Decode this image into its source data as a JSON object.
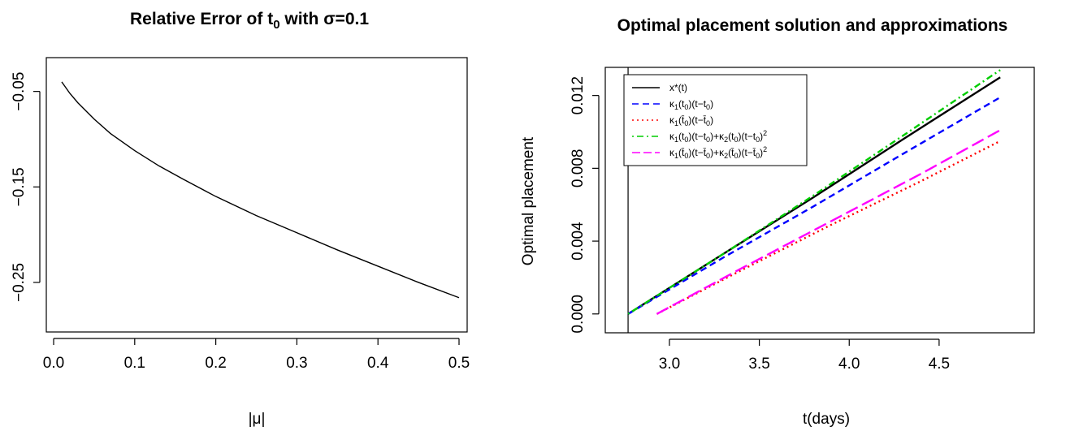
{
  "chart_data": [
    {
      "type": "line",
      "title": "Relative Error of t₀ with σ=0.1",
      "title_parts": [
        "Relative Error of t",
        "0",
        " with σ=0.1"
      ],
      "xlabel": "|μ|",
      "ylabel": "",
      "xlim": [
        0.0,
        0.5
      ],
      "ylim": [
        -0.29,
        -0.035
      ],
      "xticks": [
        0.0,
        0.1,
        0.2,
        0.3,
        0.4,
        0.5
      ],
      "xtick_labels": [
        "0.0",
        "0.1",
        "0.2",
        "0.3",
        "0.4",
        "0.5"
      ],
      "yticks": [
        -0.05,
        -0.15,
        -0.25
      ],
      "ytick_labels": [
        "−0.05",
        "−0.15",
        "−0.25"
      ],
      "grid": false,
      "series": [
        {
          "color": "#000000",
          "x": [
            0.01,
            0.02,
            0.03,
            0.05,
            0.07,
            0.1,
            0.13,
            0.16,
            0.2,
            0.25,
            0.3,
            0.35,
            0.4,
            0.45,
            0.5
          ],
          "y": [
            -0.04,
            -0.052,
            -0.062,
            -0.079,
            -0.094,
            -0.112,
            -0.128,
            -0.142,
            -0.16,
            -0.18,
            -0.198,
            -0.216,
            -0.233,
            -0.25,
            -0.266
          ]
        }
      ]
    },
    {
      "type": "line",
      "title": "Optimal placement solution and approximations",
      "xlabel": "t(days)",
      "ylabel": "Optimal placement",
      "xlim": [
        2.72,
        4.88
      ],
      "ylim": [
        -0.0005,
        0.0135
      ],
      "xticks": [
        3.0,
        3.5,
        4.0,
        4.5
      ],
      "xtick_labels": [
        "3.0",
        "3.5",
        "4.0",
        "4.5"
      ],
      "yticks": [
        0.0,
        0.004,
        0.008,
        0.012
      ],
      "ytick_labels": [
        "0.000",
        "0.004",
        "0.008",
        "0.012"
      ],
      "vline_x": 2.77,
      "grid": false,
      "legend_position": "top-left",
      "series": [
        {
          "name": "x*(t)",
          "legend_parts": [
            [
              "x*(t)",
              "n"
            ]
          ],
          "color": "#000000",
          "dash": "solid",
          "x": [
            2.77,
            3.3,
            3.8,
            4.3,
            4.84
          ],
          "y": [
            0.0,
            0.0033,
            0.0064,
            0.0096,
            0.013
          ]
        },
        {
          "name": "κ1(t0)(t−t0)",
          "legend_parts": [
            [
              "κ",
              "n"
            ],
            [
              "1",
              "sub"
            ],
            [
              "(t",
              "n"
            ],
            [
              "0",
              "sub"
            ],
            [
              ")(t−t",
              "n"
            ],
            [
              "0",
              "sub"
            ],
            [
              ")",
              "n"
            ]
          ],
          "color": "#0000ff",
          "dash": "dashed",
          "x": [
            2.77,
            3.3,
            3.8,
            4.3,
            4.84
          ],
          "y": [
            0.0,
            0.0031,
            0.0059,
            0.0088,
            0.0119
          ]
        },
        {
          "name": "κ1(t̄0)(t−t̄0)",
          "legend_parts": [
            [
              "κ",
              "n"
            ],
            [
              "1",
              "sub"
            ],
            [
              "(t̄",
              "n"
            ],
            [
              "0",
              "sub"
            ],
            [
              ")(t−t̄",
              "n"
            ],
            [
              "0",
              "sub"
            ],
            [
              ")",
              "n"
            ]
          ],
          "color": "#ff0000",
          "dash": "dotted",
          "x": [
            2.93,
            3.4,
            3.9,
            4.4,
            4.84
          ],
          "y": [
            0.0,
            0.0024,
            0.0049,
            0.0073,
            0.0095
          ]
        },
        {
          "name": "κ1(t0)(t−t0)+κ2(t0)(t−t0)²",
          "legend_parts": [
            [
              "κ",
              "n"
            ],
            [
              "1",
              "sub"
            ],
            [
              "(t",
              "n"
            ],
            [
              "0",
              "sub"
            ],
            [
              ")(t−t",
              "n"
            ],
            [
              "0",
              "sub"
            ],
            [
              ")+κ",
              "n"
            ],
            [
              "2",
              "sub"
            ],
            [
              "(t",
              "n"
            ],
            [
              "0",
              "sub"
            ],
            [
              ")(t−t",
              "n"
            ],
            [
              "0",
              "sub"
            ],
            [
              ")",
              "n"
            ],
            [
              "2",
              "sup"
            ]
          ],
          "color": "#00cd00",
          "dash": "dotdash",
          "x": [
            2.77,
            3.3,
            3.8,
            4.3,
            4.84
          ],
          "y": [
            0.0,
            0.0033,
            0.0065,
            0.0098,
            0.0134
          ]
        },
        {
          "name": "κ1(t̄0)(t−t̄0)+κ2(t̄0)(t−t̄0)²",
          "legend_parts": [
            [
              "κ",
              "n"
            ],
            [
              "1",
              "sub"
            ],
            [
              "(t̄",
              "n"
            ],
            [
              "0",
              "sub"
            ],
            [
              ")(t−t̄",
              "n"
            ],
            [
              "0",
              "sub"
            ],
            [
              ")+κ",
              "n"
            ],
            [
              "2",
              "sub"
            ],
            [
              "(t̄",
              "n"
            ],
            [
              "0",
              "sub"
            ],
            [
              ")(t−t̄",
              "n"
            ],
            [
              "0",
              "sub"
            ],
            [
              ")",
              "n"
            ],
            [
              "2",
              "sup"
            ]
          ],
          "color": "#ff00ff",
          "dash": "longdash",
          "x": [
            2.93,
            3.4,
            3.9,
            4.4,
            4.84
          ],
          "y": [
            0.0,
            0.0025,
            0.0051,
            0.0077,
            0.0101
          ]
        }
      ]
    }
  ]
}
